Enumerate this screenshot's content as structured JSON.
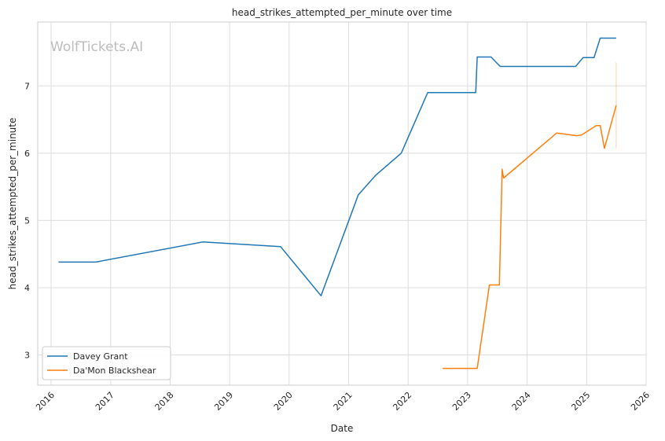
{
  "chart_data": {
    "type": "line",
    "title": "head_strikes_attempted_per_minute over time",
    "xlabel": "Date",
    "ylabel": "head_strikes_attempted_per_minute",
    "watermark": "WolfTickets.AI",
    "x_ticks": [
      "2016",
      "2017",
      "2018",
      "2019",
      "2020",
      "2021",
      "2022",
      "2023",
      "2024",
      "2025",
      "2026"
    ],
    "y_ticks": [
      3,
      4,
      5,
      6,
      7
    ],
    "xlim": [
      "2015-10-11",
      "2026-01-01"
    ],
    "ylim": [
      2.55,
      7.95
    ],
    "grid": true,
    "legend": "lower-left",
    "series": [
      {
        "name": "Davey Grant",
        "color": "#1f77b4",
        "points": [
          [
            "2016-02-15",
            4.38
          ],
          [
            "2016-10-01",
            4.38
          ],
          [
            "2018-07-20",
            4.68
          ],
          [
            "2019-11-10",
            4.61
          ],
          [
            "2020-07-15",
            3.88
          ],
          [
            "2021-03-01",
            5.38
          ],
          [
            "2021-06-15",
            5.67
          ],
          [
            "2021-11-20",
            6.0
          ],
          [
            "2022-05-01",
            6.9
          ],
          [
            "2023-02-20",
            6.9
          ],
          [
            "2023-03-01",
            7.43
          ],
          [
            "2023-05-25",
            7.43
          ],
          [
            "2023-07-20",
            7.29
          ],
          [
            "2024-10-25",
            7.29
          ],
          [
            "2024-12-10",
            7.42
          ],
          [
            "2025-02-15",
            7.42
          ],
          [
            "2025-03-25",
            7.71
          ],
          [
            "2025-07-01",
            7.71
          ]
        ]
      },
      {
        "name": "Da'Mon Blackshear",
        "color": "#ff7f0e",
        "points": [
          [
            "2022-08-01",
            2.8
          ],
          [
            "2023-03-01",
            2.8
          ],
          [
            "2023-05-15",
            4.04
          ],
          [
            "2023-07-15",
            4.04
          ],
          [
            "2023-08-01",
            5.76
          ],
          [
            "2023-08-10",
            5.63
          ],
          [
            "2024-07-01",
            6.3
          ],
          [
            "2024-11-01",
            6.26
          ],
          [
            "2024-12-01",
            6.27
          ],
          [
            "2025-03-01",
            6.41
          ],
          [
            "2025-03-25",
            6.41
          ],
          [
            "2025-04-20",
            6.07
          ],
          [
            "2025-07-01",
            6.71
          ]
        ],
        "band": {
          "x": "2025-07-01",
          "low": 6.07,
          "high": 7.35
        }
      }
    ]
  }
}
